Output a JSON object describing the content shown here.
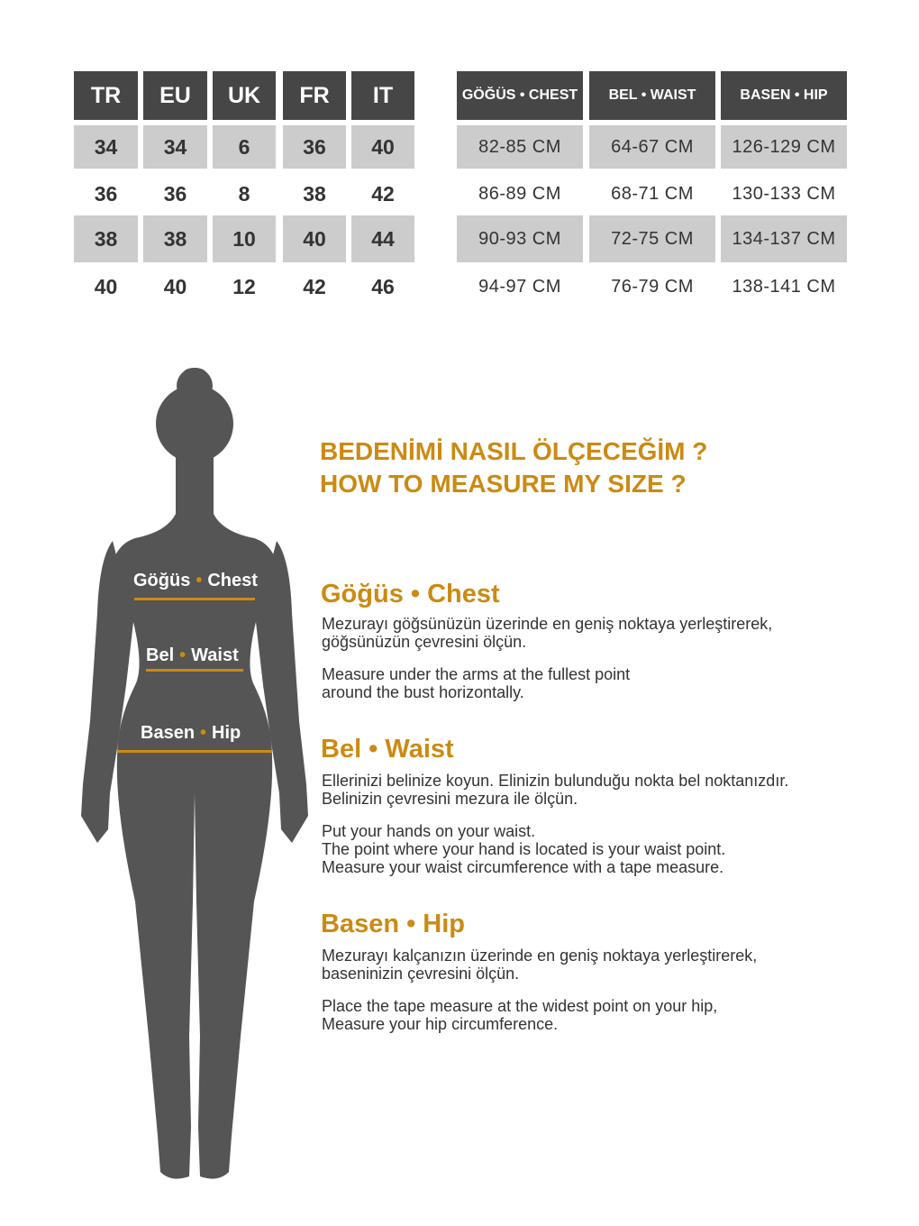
{
  "size_table": {
    "headers": [
      "TR",
      "EU",
      "UK",
      "FR",
      "IT"
    ],
    "rows": [
      [
        "34",
        "34",
        "6",
        "36",
        "40"
      ],
      [
        "36",
        "36",
        "8",
        "38",
        "42"
      ],
      [
        "38",
        "38",
        "10",
        "40",
        "44"
      ],
      [
        "40",
        "40",
        "12",
        "42",
        "46"
      ]
    ]
  },
  "measure_table": {
    "headers": [
      "GÖĞÜS • CHEST",
      "BEL • WAIST",
      "BASEN • HIP"
    ],
    "rows": [
      [
        "82-85 CM",
        "64-67 CM",
        "126-129 CM"
      ],
      [
        "86-89 CM",
        "68-71 CM",
        "130-133 CM"
      ],
      [
        "90-93 CM",
        "72-75 CM",
        "134-137 CM"
      ],
      [
        "94-97 CM",
        "76-79 CM",
        "138-141 CM"
      ]
    ]
  },
  "colors": {
    "header": "#464646",
    "shaded_row": "#cccccc",
    "accent": "#cc8a12",
    "silhouette": "#555555"
  },
  "question": {
    "tr": "BEDENİMİ NASIL ÖLÇECEĞİM ?",
    "en": "HOW TO MEASURE MY SIZE ?"
  },
  "body_labels": {
    "chest": {
      "tr": "Göğüs",
      "en": "Chest"
    },
    "waist": {
      "tr": "Bel",
      "en": "Waist"
    },
    "hip": {
      "tr": "Basen",
      "en": "Hip"
    }
  },
  "sections": [
    {
      "title": "Göğüs • Chest",
      "tr": "Mezurayı göğsünüzün üzerinde en geniş noktaya yerleştirerek,\ngöğsünüzün çevresini ölçün.",
      "en": "Measure under the arms at the fullest point\naround the bust horizontally."
    },
    {
      "title": "Bel • Waist",
      "tr": "Ellerinizi belinize koyun. Elinizin bulunduğu nokta bel noktanızdır.\nBelinizin çevresini mezura ile ölçün.",
      "en": "Put your hands on your waist.\nThe point where your hand is located is your waist point.\nMeasure your waist circumference with a tape measure."
    },
    {
      "title": "Basen • Hip",
      "tr": "Mezurayı kalçanızın üzerinde en geniş noktaya yerleştirerek,\nbaseninizin çevresini ölçün.",
      "en": "Place the tape measure at the widest point on your hip,\nMeasure your hip circumference."
    }
  ]
}
